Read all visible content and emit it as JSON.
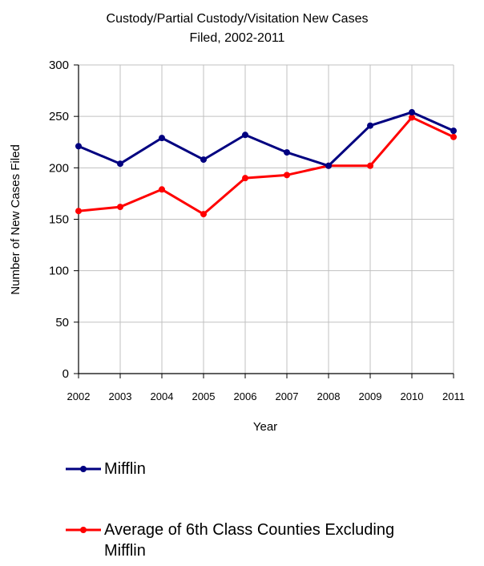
{
  "chart_data": {
    "type": "line",
    "title": "Custody/Partial Custody/Visitation New Cases",
    "subtitle": "Filed, 2002-2011",
    "xlabel": "Year",
    "ylabel": "Number of New Cases Filed",
    "x": [
      "2002",
      "2003",
      "2004",
      "2005",
      "2006",
      "2007",
      "2008",
      "2009",
      "2010",
      "2011"
    ],
    "yticks": [
      "0",
      "50",
      "100",
      "150",
      "200",
      "250",
      "300"
    ],
    "ylim": [
      0,
      300
    ],
    "grid": true,
    "legend_position": "bottom",
    "series": [
      {
        "name": "Mifflin",
        "color": "#000080",
        "values": [
          221,
          204,
          229,
          208,
          232,
          215,
          202,
          241,
          254,
          236
        ]
      },
      {
        "name": "Average of 6th Class Counties Excluding Mifflin",
        "name_line1": "Average of 6th Class Counties Excluding",
        "name_line2": "Mifflin",
        "color": "#ff0000",
        "values": [
          158,
          162,
          179,
          155,
          190,
          193,
          202,
          202,
          249,
          230
        ]
      }
    ]
  }
}
